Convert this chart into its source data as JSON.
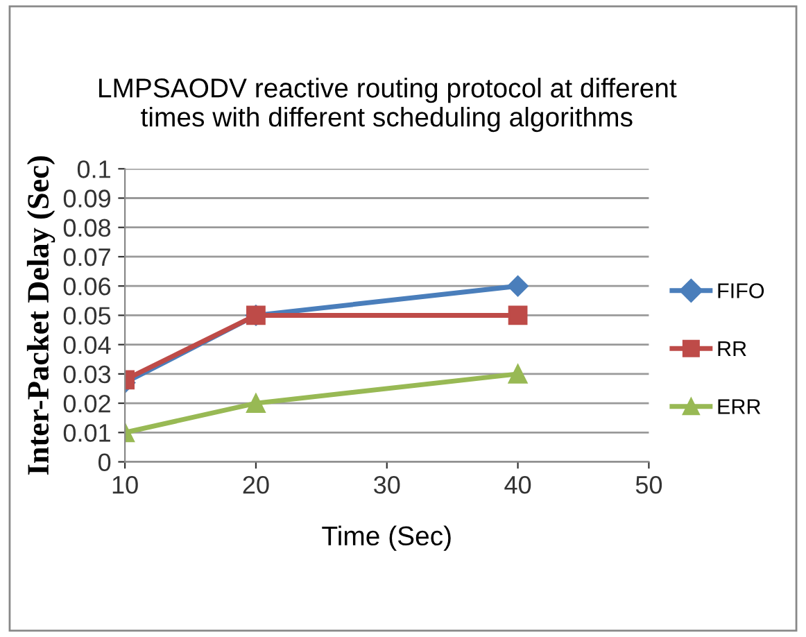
{
  "chart_data": {
    "type": "line",
    "title": "LMPSAODV reactive routing protocol at different\ntimes with different scheduling algorithms",
    "xlabel": "Time (Sec)",
    "ylabel": "Inter-Packet Delay (Sec)",
    "x": [
      10,
      20,
      40
    ],
    "series": [
      {
        "name": "FIFO",
        "color": "#4a7ebb",
        "values": [
          0.027,
          0.05,
          0.06
        ],
        "marker": "diamond"
      },
      {
        "name": "RR",
        "color": "#be4b48",
        "values": [
          0.028,
          0.05,
          0.05
        ],
        "marker": "square"
      },
      {
        "name": "ERR",
        "color": "#98b954",
        "values": [
          0.01,
          0.02,
          0.03
        ],
        "marker": "triangle"
      }
    ],
    "xlim": [
      10,
      50
    ],
    "xticks": [
      10,
      20,
      30,
      40,
      50
    ],
    "ylim": [
      0,
      0.1
    ],
    "yticks": [
      0,
      0.01,
      0.02,
      0.03,
      0.04,
      0.05,
      0.06,
      0.07,
      0.08,
      0.09,
      0.1
    ],
    "grid": "y",
    "legend": "right",
    "line_style": "solid"
  }
}
